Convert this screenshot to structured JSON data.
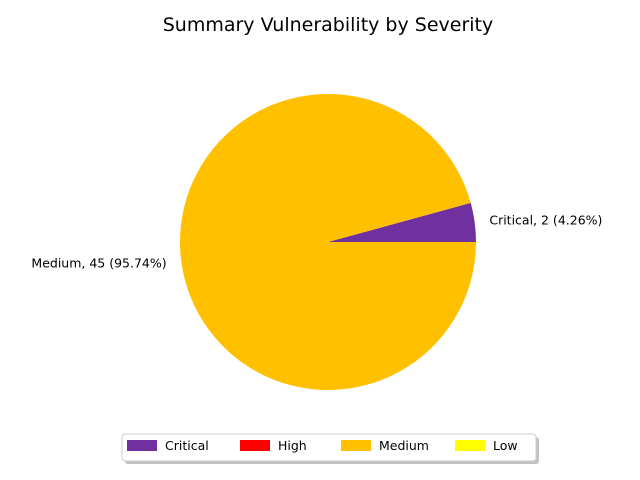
{
  "chart_data": {
    "type": "pie",
    "title": "Summary Vulnerability by Severity",
    "slices": [
      {
        "name": "Critical",
        "value": 2,
        "color": "#7030a0",
        "label": "Critical, 2 (4.26%)"
      },
      {
        "name": "High",
        "value": 0,
        "color": "#ff0000",
        "label": ""
      },
      {
        "name": "Medium",
        "value": 45,
        "color": "#ffc000",
        "label": "Medium, 45 (95.74%)"
      },
      {
        "name": "Low",
        "value": 0,
        "color": "#ffff00",
        "label": ""
      }
    ],
    "legend": {
      "placement": "bottom-center",
      "entries": [
        {
          "name": "Critical",
          "color": "#7030a0"
        },
        {
          "name": "High",
          "color": "#ff0000"
        },
        {
          "name": "Medium",
          "color": "#ffc000"
        },
        {
          "name": "Low",
          "color": "#ffff00"
        }
      ]
    }
  }
}
